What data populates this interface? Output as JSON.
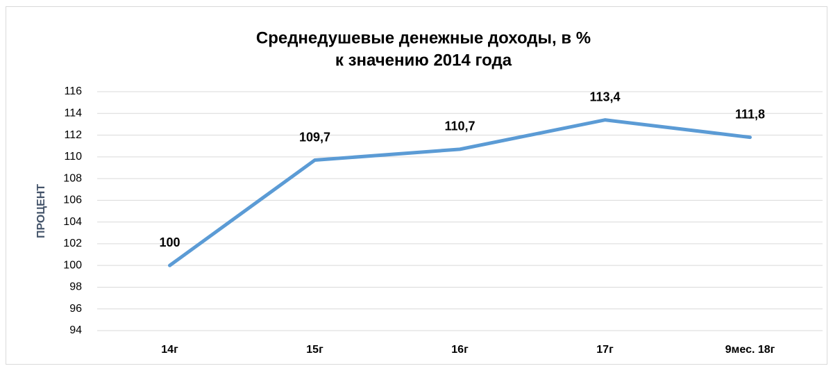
{
  "chart_data": {
    "type": "line",
    "title": [
      "Среднедушевые денежные доходы, в %",
      "к значению 2014 года"
    ],
    "y_label": "ПРОЦЕНТ",
    "categories": [
      "14г",
      "15г",
      "16г",
      "17г",
      "9мес. 18г"
    ],
    "values": [
      100,
      109.7,
      110.7,
      113.4,
      111.8
    ],
    "value_labels": [
      "100",
      "109,7",
      "110,7",
      "113,4",
      "111,8"
    ],
    "color": "#5b9bd5",
    "ylim": [
      94,
      116
    ],
    "yticks": [
      94,
      96,
      98,
      100,
      102,
      104,
      106,
      108,
      110,
      112,
      114,
      116
    ],
    "grid": true
  }
}
